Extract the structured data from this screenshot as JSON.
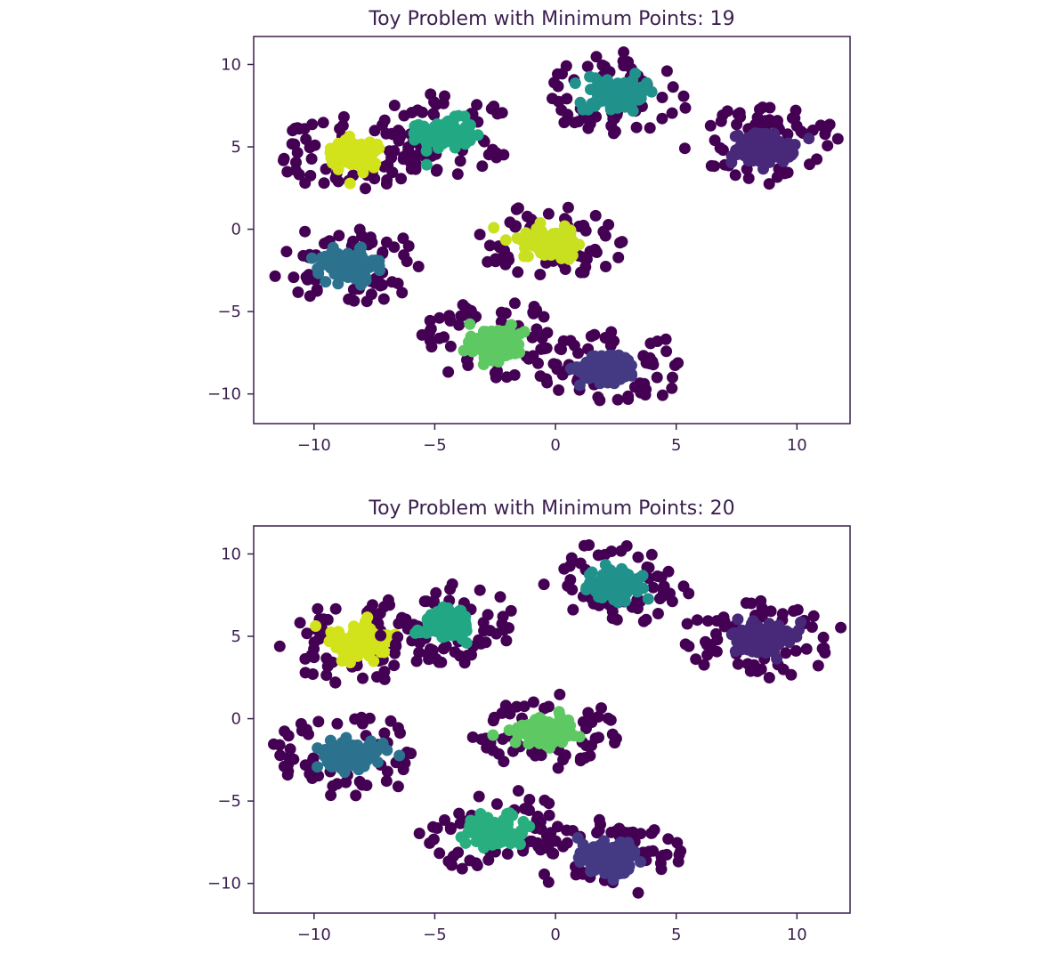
{
  "chart_data": [
    {
      "type": "scatter",
      "title": "Toy Problem with Minimum Points: 19",
      "xlabel": "",
      "ylabel": "",
      "xlim": [
        -12.5,
        12.2
      ],
      "ylim": [
        -11.8,
        11.7
      ],
      "xticks": [
        -10,
        -5,
        0,
        5,
        10
      ],
      "xtick_labels": [
        "−10",
        "−5",
        "0",
        "5",
        "10"
      ],
      "yticks": [
        -10,
        -5,
        0,
        5,
        10
      ],
      "ytick_labels": [
        "−10",
        "−5",
        "0",
        "5",
        "10"
      ],
      "grid": false,
      "legend": "none",
      "clusters": [
        {
          "center": [
            -8.3,
            4.6
          ],
          "spread": [
            1.3,
            1.0
          ],
          "core_color": "#d2e21b",
          "noise_color": "#440154"
        },
        {
          "center": [
            -4.5,
            5.8
          ],
          "spread": [
            1.2,
            1.0
          ],
          "core_color": "#23a884",
          "noise_color": "#440154"
        },
        {
          "center": [
            2.5,
            8.2
          ],
          "spread": [
            1.3,
            1.0
          ],
          "core_color": "#21918c",
          "noise_color": "#440154"
        },
        {
          "center": [
            8.6,
            4.9
          ],
          "spread": [
            1.4,
            1.0
          ],
          "core_color": "#482878",
          "noise_color": "#440154"
        },
        {
          "center": [
            -0.3,
            -0.8
          ],
          "spread": [
            1.3,
            0.9
          ],
          "core_color": "#c8e020",
          "noise_color": "#440154"
        },
        {
          "center": [
            -8.6,
            -2.2
          ],
          "spread": [
            1.3,
            1.0
          ],
          "core_color": "#2c728e",
          "noise_color": "#440154"
        },
        {
          "center": [
            -2.5,
            -6.8
          ],
          "spread": [
            1.3,
            1.0
          ],
          "core_color": "#5ec962",
          "noise_color": "#440154"
        },
        {
          "center": [
            2.2,
            -8.4
          ],
          "spread": [
            1.3,
            1.0
          ],
          "core_color": "#443a83",
          "noise_color": "#440154"
        }
      ]
    },
    {
      "type": "scatter",
      "title": "Toy Problem with Minimum Points: 20",
      "xlabel": "",
      "ylabel": "",
      "xlim": [
        -12.5,
        12.2
      ],
      "ylim": [
        -11.8,
        11.7
      ],
      "xticks": [
        -10,
        -5,
        0,
        5,
        10
      ],
      "xtick_labels": [
        "−10",
        "−5",
        "0",
        "5",
        "10"
      ],
      "yticks": [
        -10,
        -5,
        0,
        5,
        10
      ],
      "ytick_labels": [
        "−10",
        "−5",
        "0",
        "5",
        "10"
      ],
      "grid": false,
      "legend": "none",
      "clusters": [
        {
          "center": [
            -8.3,
            4.6
          ],
          "spread": [
            1.3,
            1.0
          ],
          "core_color": "#d2e21b",
          "noise_color": "#440154"
        },
        {
          "center": [
            -4.5,
            5.8
          ],
          "spread": [
            1.2,
            1.0
          ],
          "core_color": "#22a785",
          "noise_color": "#440154"
        },
        {
          "center": [
            2.5,
            8.2
          ],
          "spread": [
            1.3,
            1.0
          ],
          "core_color": "#21918c",
          "noise_color": "#440154"
        },
        {
          "center": [
            8.6,
            4.9
          ],
          "spread": [
            1.4,
            1.0
          ],
          "core_color": "#482878",
          "noise_color": "#440154"
        },
        {
          "center": [
            -0.3,
            -0.8
          ],
          "spread": [
            1.3,
            0.9
          ],
          "core_color": "#5ec962",
          "noise_color": "#440154"
        },
        {
          "center": [
            -8.6,
            -2.2
          ],
          "spread": [
            1.3,
            1.0
          ],
          "core_color": "#2c728e",
          "noise_color": "#440154"
        },
        {
          "center": [
            -2.5,
            -6.8
          ],
          "spread": [
            1.3,
            1.0
          ],
          "core_color": "#29af7f",
          "noise_color": "#440154"
        },
        {
          "center": [
            2.2,
            -8.4
          ],
          "spread": [
            1.3,
            1.0
          ],
          "core_color": "#443a83",
          "noise_color": "#440154"
        }
      ]
    }
  ]
}
